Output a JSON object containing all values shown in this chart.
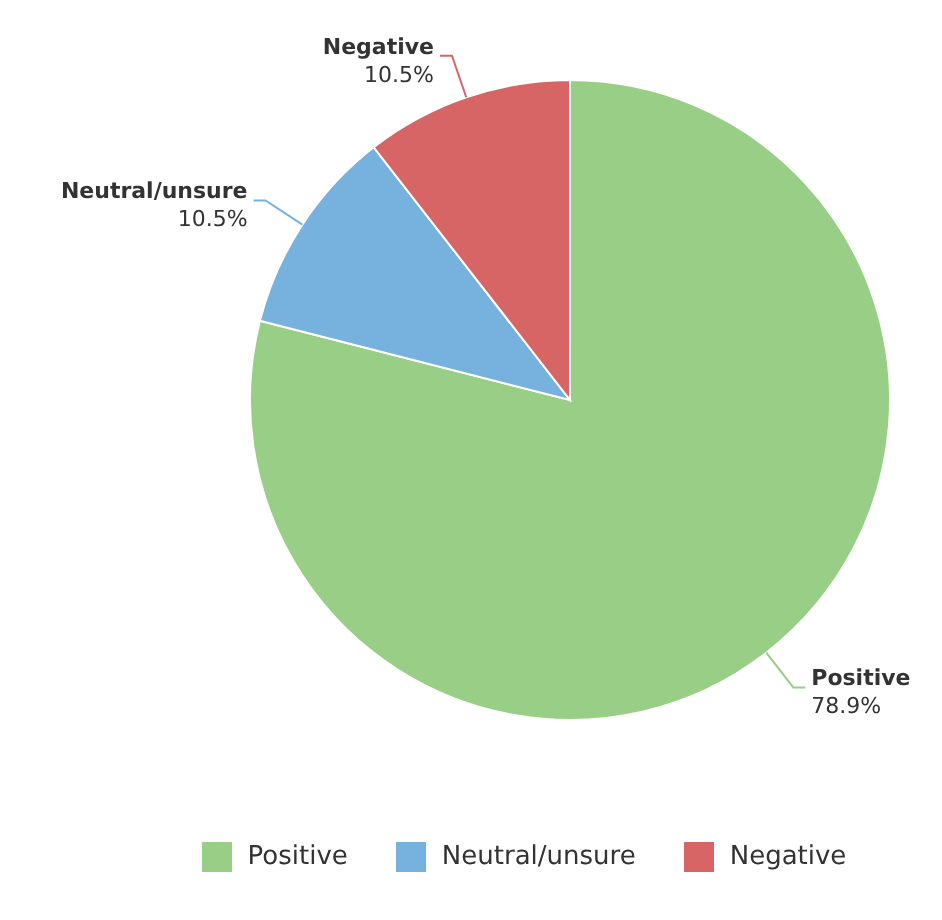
{
  "chart_data": {
    "type": "pie",
    "categories": [
      "Positive",
      "Neutral/unsure",
      "Negative"
    ],
    "values": [
      78.9,
      10.5,
      10.5
    ],
    "colors": [
      "#98ce85",
      "#77b1de",
      "#d86565"
    ],
    "value_labels": [
      "78.9%",
      "10.5%",
      "10.5%"
    ],
    "legend": "bottom"
  }
}
